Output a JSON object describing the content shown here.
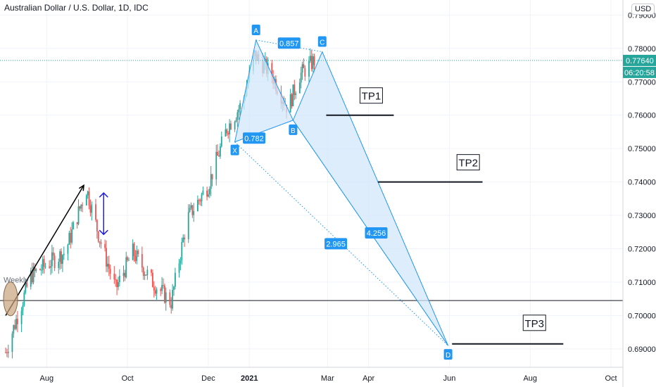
{
  "header": {
    "title": "Australian Dollar / U.S. Dollar, 1D, IDC",
    "currency": "USD"
  },
  "colors": {
    "up": "#26a69a",
    "down": "#ef5350",
    "accent": "#2196f3",
    "pattern_fill": "#d2e7fb",
    "price_line": "#26a69a",
    "grid": "#f0f3fa",
    "axis_text": "#131722"
  },
  "chart_data": {
    "type": "candlestick",
    "symbol": "AUDUSD",
    "timeframe": "1D",
    "x_tick_labels": [
      "Aug",
      "Oct",
      "Dec",
      "2021",
      "Mar",
      "Apr",
      "Jun",
      "Aug",
      "Oct"
    ],
    "y_tick_labels": [
      "0.69000",
      "0.70000",
      "0.71000",
      "0.72000",
      "0.73000",
      "0.74000",
      "0.75000",
      "0.76000",
      "0.77000",
      "0.78000",
      "0.79000"
    ],
    "ylim": [
      0.6845,
      0.7945
    ],
    "current_price": {
      "value": "0.77640",
      "countdown": "06:20:58"
    },
    "ohlc_path": [
      {
        "date": "2020-07-01",
        "price": 0.689
      },
      {
        "date": "2020-07-20",
        "price": 0.712
      },
      {
        "date": "2020-08-15",
        "price": 0.719
      },
      {
        "date": "2020-08-31",
        "price": 0.738
      },
      {
        "date": "2020-09-10",
        "price": 0.723
      },
      {
        "date": "2020-09-22",
        "price": 0.708
      },
      {
        "date": "2020-10-05",
        "price": 0.719
      },
      {
        "date": "2020-10-20",
        "price": 0.71
      },
      {
        "date": "2020-11-03",
        "price": 0.704
      },
      {
        "date": "2020-11-15",
        "price": 0.729
      },
      {
        "date": "2020-12-01",
        "price": 0.739
      },
      {
        "date": "2020-12-15",
        "price": 0.756
      },
      {
        "date": "2020-12-27",
        "price": 0.764
      },
      {
        "date": "2021-01-05",
        "price": 0.778
      },
      {
        "date": "2021-01-18",
        "price": 0.772
      },
      {
        "date": "2021-01-30",
        "price": 0.762
      },
      {
        "date": "2021-02-08",
        "price": 0.772
      },
      {
        "date": "2021-02-19",
        "price": 0.7764
      }
    ],
    "pattern": {
      "points": [
        {
          "label": "X",
          "date": "2020-12-21",
          "price": 0.752
        },
        {
          "label": "A",
          "date": "2021-01-06",
          "price": 0.7825
        },
        {
          "label": "B",
          "date": "2021-02-03",
          "price": 0.7585
        },
        {
          "label": "C",
          "date": "2021-02-25",
          "price": 0.779
        },
        {
          "label": "D",
          "date": "2021-05-31",
          "price": 0.691
        }
      ],
      "ratios": [
        {
          "value": "0.782",
          "between": "X-B"
        },
        {
          "value": "0.857",
          "between": "A-C"
        },
        {
          "value": "2.965",
          "between": "X-D"
        },
        {
          "value": "4.256",
          "between": "B-D"
        }
      ]
    },
    "take_profits": [
      {
        "label": "TP1",
        "price": 0.76,
        "from": "2021-02-28",
        "to": "2021-04-20"
      },
      {
        "label": "TP2",
        "price": 0.74,
        "from": "2021-04-08",
        "to": "2021-06-26"
      },
      {
        "label": "TP3",
        "price": 0.6915,
        "from": "2021-06-03",
        "to": "2021-08-26"
      }
    ],
    "support_line": {
      "price": 0.7045
    },
    "weekly_label": "Weekly",
    "annotations": [
      {
        "type": "arrow",
        "from": {
          "date": "2020-07-01",
          "price": 0.7
        },
        "to": {
          "date": "2020-08-29",
          "price": 0.739
        }
      },
      {
        "type": "double-arrow",
        "date": "2020-09-13",
        "from": 0.7285,
        "to": 0.7325
      }
    ]
  }
}
